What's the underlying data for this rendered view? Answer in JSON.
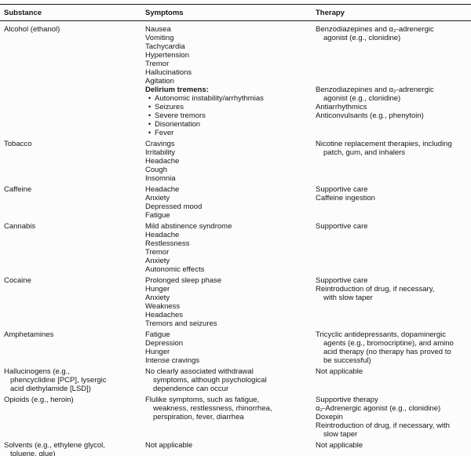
{
  "colors": {
    "background": "#fcfcfc",
    "text": "#161616",
    "rule": "#1a1a1a"
  },
  "table": {
    "bullet_glyph": "•",
    "columns": [
      "Substance",
      "Symptoms",
      "Therapy"
    ],
    "rows": [
      {
        "substance": {
          "lines": [
            "Alcohol (ethanol)"
          ]
        },
        "symptoms": [
          "Nausea",
          "Vomiting",
          "Tachycardia",
          "Hypertension",
          "Tremor",
          "Hallucinations",
          "Agitation",
          {
            "lines": [
              "Delirium tremens:"
            ],
            "bold": true
          },
          {
            "lines": [
              "Autonomic instability/arrhythmias"
            ],
            "bullet": true
          },
          {
            "lines": [
              "Seizures"
            ],
            "bullet": true
          },
          {
            "lines": [
              "Severe tremors"
            ],
            "bullet": true
          },
          {
            "lines": [
              "Disorientation"
            ],
            "bullet": true
          },
          {
            "lines": [
              "Fever"
            ],
            "bullet": true
          }
        ],
        "therapy": [
          {
            "lines": [
              "Benzodiazepines and α₂-adrenergic",
              "agonist (e.g., clonidine)"
            ]
          },
          {
            "lines": [
              "Benzodiazepines and α₂-adrenergic",
              "agonist (e.g., clonidine)"
            ],
            "gap_lines_before": 5
          },
          {
            "lines": [
              "Antiarrhythmics"
            ]
          },
          {
            "lines": [
              "Anticonvulsants (e.g., phenytoin)"
            ]
          }
        ]
      },
      {
        "substance": {
          "lines": [
            "Tobacco"
          ]
        },
        "symptoms": [
          "Cravings",
          "Irritability",
          "Headache",
          "Cough",
          "Insomnia"
        ],
        "therapy": [
          {
            "lines": [
              "Nicotine replacement therapies, including",
              "patch, gum, and inhalers"
            ]
          }
        ]
      },
      {
        "substance": {
          "lines": [
            "Caffeine"
          ]
        },
        "symptoms": [
          "Headache",
          "Anxiety",
          "Depressed mood",
          "Fatigue"
        ],
        "therapy": [
          {
            "lines": [
              "Supportive care"
            ]
          },
          {
            "lines": [
              "Caffeine ingestion"
            ]
          }
        ]
      },
      {
        "substance": {
          "lines": [
            "Cannabis"
          ]
        },
        "symptoms": [
          "Mild abstinence syndrome",
          "Headache",
          "Restlessness",
          "Tremor",
          "Anxiety",
          "Autonomic effects"
        ],
        "therapy": [
          {
            "lines": [
              "Supportive care"
            ]
          }
        ]
      },
      {
        "substance": {
          "lines": [
            "Cocaine"
          ]
        },
        "symptoms": [
          "Prolonged sleep phase",
          "Hunger",
          "Anxiety",
          "Weakness",
          "Headaches",
          "Tremors and seizures"
        ],
        "therapy": [
          {
            "lines": [
              "Supportive care"
            ]
          },
          {
            "lines": [
              "Reintroduction of drug, if necessary,",
              "with slow taper"
            ]
          }
        ]
      },
      {
        "substance": {
          "lines": [
            "Amphetamines"
          ]
        },
        "symptoms": [
          "Fatigue",
          "Depression",
          "Hunger",
          "Intense cravings"
        ],
        "therapy": [
          {
            "lines": [
              "Tricyclic antidepressants, dopaminergic",
              "agents (e.g., bromocriptine), and amino",
              "acid therapy (no therapy has proved to",
              "be successful)"
            ]
          }
        ]
      },
      {
        "substance": {
          "lines": [
            "Hallucinogens (e.g.,",
            "phencyclidine [PCP], lysergic",
            "acid diethylamide [LSD])"
          ]
        },
        "symptoms": [
          {
            "lines": [
              "No clearly associated withdrawal",
              "symptoms, although psychological",
              "dependence can occur"
            ]
          }
        ],
        "therapy": [
          {
            "lines": [
              "Not applicable"
            ]
          }
        ]
      },
      {
        "substance": {
          "lines": [
            "Opioids (e.g., heroin)"
          ]
        },
        "symptoms": [
          {
            "lines": [
              "Flulike symptoms, such as fatigue,",
              "weakness, restlessness, rhinorrhea,",
              "perspiration, fever, diarrhea"
            ]
          }
        ],
        "therapy": [
          {
            "lines": [
              "Supportive therapy"
            ]
          },
          {
            "lines": [
              "α₂-Adrenergic agonist (e.g., clonidine)"
            ]
          },
          {
            "lines": [
              "Doxepin"
            ]
          },
          {
            "lines": [
              "Reintroduction of drug, if necessary, with",
              "slow taper"
            ]
          }
        ]
      },
      {
        "substance": {
          "lines": [
            "Solvents (e.g., ethylene glycol,",
            "toluene, glue)"
          ]
        },
        "symptoms": [
          {
            "lines": [
              "Not applicable"
            ]
          }
        ],
        "therapy": [
          {
            "lines": [
              "Not applicable"
            ]
          }
        ]
      }
    ]
  }
}
